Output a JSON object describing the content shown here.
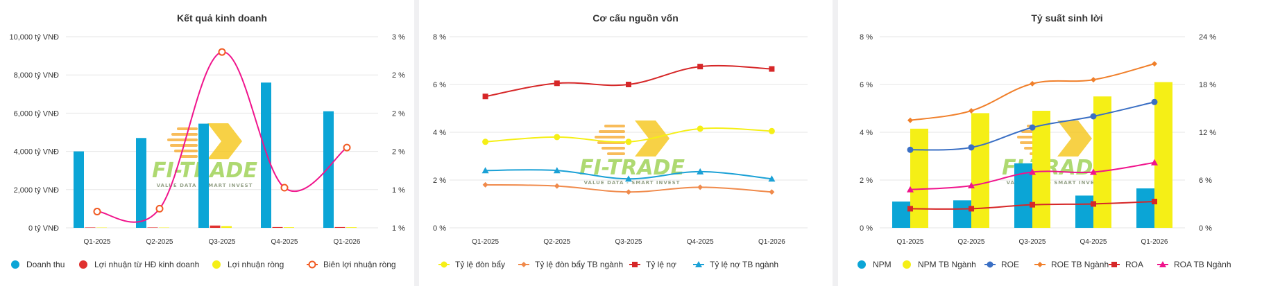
{
  "watermark": {
    "logo": "FI-TRADE",
    "tagline": "VALUE DATA - SMART INVEST"
  },
  "chart_data": [
    {
      "type": "bar",
      "title": "Kết quả kinh doanh",
      "categories": [
        "Q1-2025",
        "Q2-2025",
        "Q3-2025",
        "Q4-2025",
        "Q1-2026"
      ],
      "y_left": {
        "ticks": [
          "0 tỷ VNĐ",
          "2,000 tỷ VNĐ",
          "4,000 tỷ VNĐ",
          "6,000 tỷ VNĐ",
          "8,000 tỷ VNĐ",
          "10,000 tỷ VNĐ"
        ],
        "range": [
          0,
          10000
        ]
      },
      "y_right": {
        "ticks": [
          "1 %",
          "1 %",
          "2 %",
          "2 %",
          "2 %",
          "3 %"
        ],
        "range": [
          1,
          3
        ]
      },
      "series": [
        {
          "name": "Doanh thu",
          "type": "bar",
          "axis": "left",
          "color": "#0ba5d6",
          "values": [
            4000,
            4700,
            5450,
            7600,
            6100
          ]
        },
        {
          "name": "Lợi nhuận từ HĐ kinh doanh",
          "type": "bar",
          "axis": "left",
          "color": "#e0312f",
          "values": [
            20,
            20,
            120,
            40,
            40
          ]
        },
        {
          "name": "Lợi nhuận ròng",
          "type": "bar",
          "axis": "left",
          "color": "#f5ef16",
          "values": [
            15,
            15,
            90,
            30,
            30
          ]
        },
        {
          "name": "Biên lợi nhuận ròng",
          "type": "line",
          "axis": "right",
          "color": "#f15a22",
          "line_color": "#f0148c",
          "values": [
            1.17,
            1.2,
            2.84,
            1.42,
            1.84
          ]
        }
      ]
    },
    {
      "type": "line",
      "title": "Cơ cấu nguồn vốn",
      "categories": [
        "Q1-2025",
        "Q2-2025",
        "Q3-2025",
        "Q4-2025",
        "Q1-2026"
      ],
      "y_left": {
        "ticks": [
          "0 %",
          "2 %",
          "4 %",
          "6 %",
          "8 %"
        ],
        "range": [
          0,
          8
        ]
      },
      "series": [
        {
          "name": "Tỷ lệ đòn bẩy",
          "marker": "circle",
          "color": "#f5ef16",
          "values": [
            3.6,
            3.8,
            3.6,
            4.15,
            4.05
          ]
        },
        {
          "name": "Tỷ lệ đòn bẩy TB ngành",
          "marker": "diamond",
          "color": "#f08a4b",
          "values": [
            1.8,
            1.75,
            1.5,
            1.7,
            1.5
          ]
        },
        {
          "name": "Tỷ lệ nợ",
          "marker": "square",
          "color": "#d62728",
          "values": [
            5.5,
            6.05,
            6.0,
            6.75,
            6.65
          ]
        },
        {
          "name": "Tỷ lệ nợ TB ngành",
          "marker": "triangle",
          "color": "#1ba1d6",
          "values": [
            2.4,
            2.4,
            2.05,
            2.35,
            2.05
          ]
        }
      ]
    },
    {
      "type": "bar",
      "title": "Tỷ suất sinh lời",
      "categories": [
        "Q1-2025",
        "Q2-2025",
        "Q3-2025",
        "Q4-2025",
        "Q1-2026"
      ],
      "y_left": {
        "ticks": [
          "0 %",
          "2 %",
          "4 %",
          "6 %",
          "8 %"
        ],
        "range": [
          0,
          8
        ]
      },
      "y_right": {
        "ticks": [
          "0 %",
          "6 %",
          "12 %",
          "18 %",
          "24 %"
        ],
        "range": [
          0,
          24
        ]
      },
      "series": [
        {
          "name": "NPM",
          "type": "bar",
          "axis": "left",
          "color": "#0ba5d6",
          "values": [
            1.1,
            1.15,
            2.7,
            1.35,
            1.65
          ]
        },
        {
          "name": "NPM TB Ngành",
          "type": "bar",
          "axis": "left",
          "color": "#f5ef16",
          "values": [
            4.15,
            4.8,
            4.9,
            5.5,
            6.1
          ]
        },
        {
          "name": "ROE",
          "type": "line",
          "axis": "right",
          "marker": "circle",
          "color": "#3a6fc4",
          "values": [
            9.8,
            10.1,
            12.6,
            14.0,
            15.8
          ]
        },
        {
          "name": "ROE TB Ngành",
          "type": "line",
          "axis": "right",
          "marker": "diamond",
          "color": "#f07f2a",
          "values": [
            13.5,
            14.7,
            18.1,
            18.6,
            20.6
          ]
        },
        {
          "name": "ROA",
          "type": "line",
          "axis": "right",
          "marker": "square",
          "color": "#d62728",
          "values": [
            2.4,
            2.4,
            2.9,
            3.0,
            3.3
          ]
        },
        {
          "name": "ROA TB Ngành",
          "type": "line",
          "axis": "right",
          "marker": "triangle",
          "color": "#f0148c",
          "values": [
            4.8,
            5.3,
            7.0,
            7.0,
            8.2
          ]
        }
      ]
    }
  ]
}
